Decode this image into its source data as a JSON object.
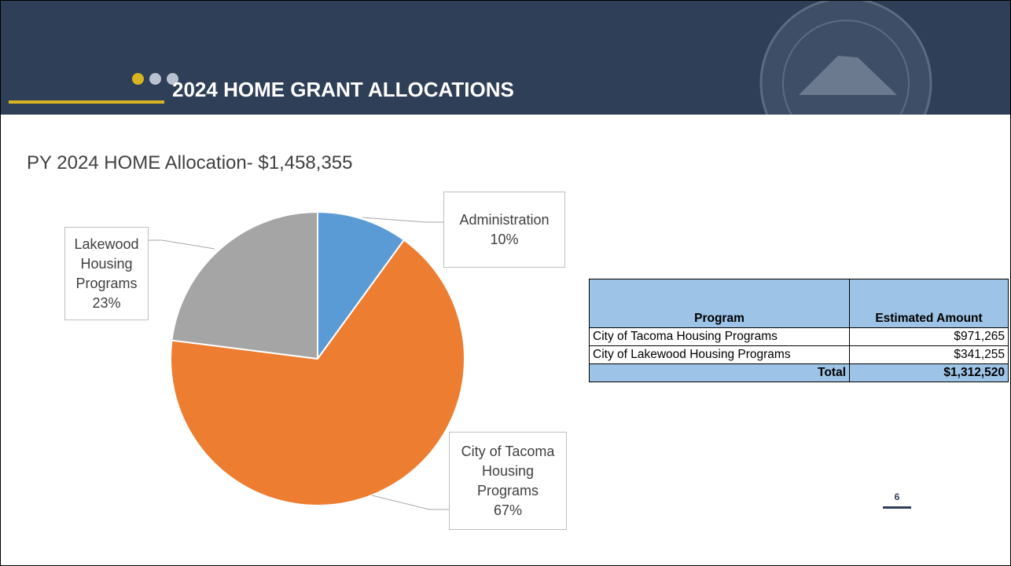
{
  "header": {
    "title": "2024 HOME GRANT ALLOCATIONS"
  },
  "subtitle": "PY 2024 HOME Allocation- $1,458,355",
  "chart_data": {
    "type": "pie",
    "categories": [
      "Administration",
      "City of Tacoma Housing Programs",
      "Lakewood Housing Programs"
    ],
    "values": [
      10,
      67,
      23
    ],
    "value_labels": [
      "10%",
      "67%",
      "23%"
    ],
    "colors": [
      "#5b9bd5",
      "#ed7d31",
      "#a5a5a5"
    ]
  },
  "table": {
    "header": [
      "Program",
      "Estimated Amount"
    ],
    "rows": [
      [
        "City of Tacoma Housing Programs",
        "$971,265"
      ],
      [
        "City of Lakewood Housing Programs",
        "$341,255"
      ]
    ],
    "total": [
      "Total",
      "$1,312,520"
    ]
  },
  "page_number": "6"
}
